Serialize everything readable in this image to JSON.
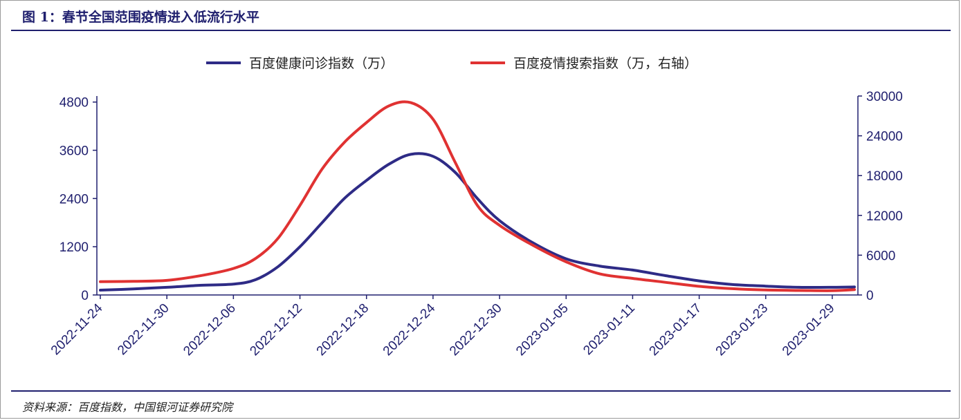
{
  "header": {
    "title": "图 1：春节全国范围疫情进入低流行水平"
  },
  "footer": {
    "source": "资料来源：百度指数，中国银河证券研究院"
  },
  "colors": {
    "series_health": "#2e2b86",
    "series_search": "#e03232",
    "axis": "#1f1f6e",
    "rule": "#1f1f6e"
  },
  "chart_data": {
    "type": "line",
    "x_ticks": [
      "2022-11-24",
      "2022-11-30",
      "2022-12-06",
      "2022-12-12",
      "2022-12-18",
      "2022-12-24",
      "2022-12-30",
      "2023-01-05",
      "2023-01-11",
      "2023-01-17",
      "2023-01-23",
      "2023-01-29"
    ],
    "x_range": [
      "2022-11-24",
      "2023-01-31"
    ],
    "y_left": {
      "ticks": [
        0,
        1200,
        2400,
        3600,
        4800
      ],
      "range": [
        0,
        4950
      ]
    },
    "y_right": {
      "ticks": [
        0,
        6000,
        12000,
        18000,
        24000,
        30000
      ],
      "range": [
        0,
        30000
      ]
    },
    "legend": {
      "position": "top-center"
    },
    "series": [
      {
        "name": "百度健康问诊指数（万）",
        "axis": "left",
        "points": [
          [
            "2022-11-24",
            120
          ],
          [
            "2022-11-27",
            150
          ],
          [
            "2022-11-30",
            190
          ],
          [
            "2022-12-03",
            240
          ],
          [
            "2022-12-06",
            270
          ],
          [
            "2022-12-08",
            380
          ],
          [
            "2022-12-10",
            700
          ],
          [
            "2022-12-12",
            1200
          ],
          [
            "2022-12-14",
            1800
          ],
          [
            "2022-12-16",
            2400
          ],
          [
            "2022-12-18",
            2850
          ],
          [
            "2022-12-20",
            3250
          ],
          [
            "2022-12-22",
            3500
          ],
          [
            "2022-12-24",
            3450
          ],
          [
            "2022-12-26",
            3050
          ],
          [
            "2022-12-28",
            2400
          ],
          [
            "2022-12-30",
            1850
          ],
          [
            "2023-01-02",
            1300
          ],
          [
            "2023-01-05",
            900
          ],
          [
            "2023-01-08",
            720
          ],
          [
            "2023-01-11",
            620
          ],
          [
            "2023-01-14",
            480
          ],
          [
            "2023-01-17",
            350
          ],
          [
            "2023-01-20",
            260
          ],
          [
            "2023-01-23",
            220
          ],
          [
            "2023-01-26",
            190
          ],
          [
            "2023-01-29",
            190
          ],
          [
            "2023-01-31",
            200
          ]
        ]
      },
      {
        "name": "百度疫情搜索指数（万，右轴）",
        "axis": "right",
        "points": [
          [
            "2022-11-24",
            2000
          ],
          [
            "2022-11-27",
            2050
          ],
          [
            "2022-11-30",
            2200
          ],
          [
            "2022-12-03",
            2900
          ],
          [
            "2022-12-06",
            4000
          ],
          [
            "2022-12-08",
            5500
          ],
          [
            "2022-12-10",
            8500
          ],
          [
            "2022-12-12",
            13500
          ],
          [
            "2022-12-14",
            19000
          ],
          [
            "2022-12-16",
            23000
          ],
          [
            "2022-12-18",
            26000
          ],
          [
            "2022-12-20",
            28500
          ],
          [
            "2022-12-22",
            29000
          ],
          [
            "2022-12-24",
            26500
          ],
          [
            "2022-12-26",
            20000
          ],
          [
            "2022-12-28",
            13500
          ],
          [
            "2022-12-30",
            10500
          ],
          [
            "2023-01-02",
            7500
          ],
          [
            "2023-01-05",
            5000
          ],
          [
            "2023-01-08",
            3200
          ],
          [
            "2023-01-11",
            2500
          ],
          [
            "2023-01-14",
            1900
          ],
          [
            "2023-01-17",
            1300
          ],
          [
            "2023-01-20",
            950
          ],
          [
            "2023-01-23",
            750
          ],
          [
            "2023-01-26",
            680
          ],
          [
            "2023-01-29",
            650
          ],
          [
            "2023-01-31",
            800
          ]
        ]
      }
    ]
  }
}
